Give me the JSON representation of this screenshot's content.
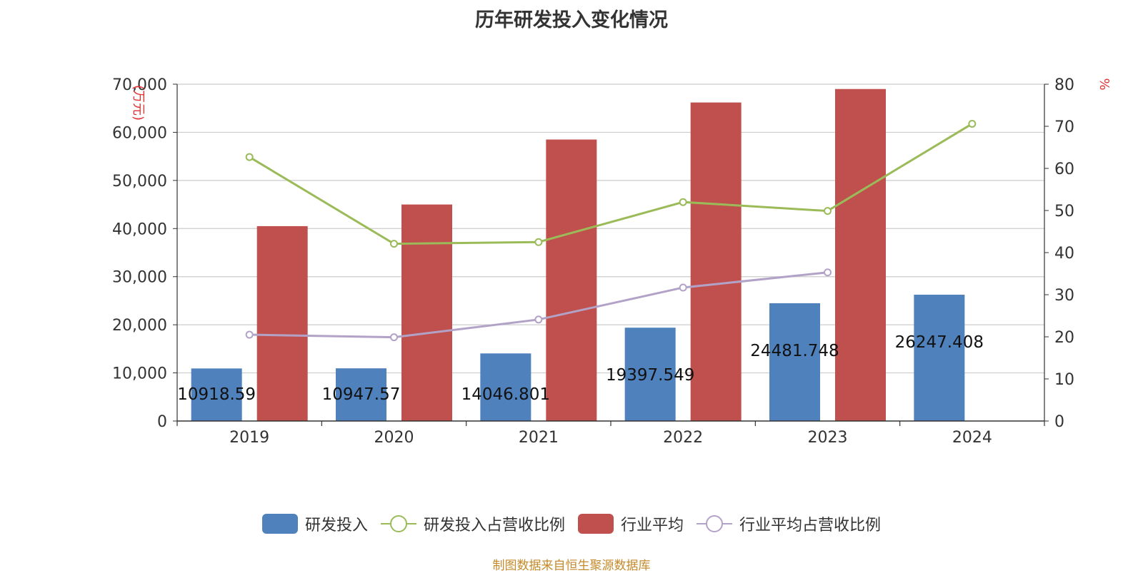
{
  "title": "历年研发投入变化情况",
  "footer": "制图数据来自恒生聚源数据库",
  "chart_data": {
    "type": "bar",
    "categories": [
      "2019",
      "2020",
      "2021",
      "2022",
      "2023",
      "2024"
    ],
    "y_left": {
      "label": "(万元)",
      "ylim": [
        0,
        70000
      ],
      "ticks": [
        "0",
        "10,000",
        "20,000",
        "30,000",
        "40,000",
        "50,000",
        "60,000",
        "70,000"
      ]
    },
    "y_right": {
      "label": "%",
      "ylim": [
        0,
        80
      ],
      "ticks": [
        "0",
        "10",
        "20",
        "30",
        "40",
        "50",
        "60",
        "70",
        "80"
      ]
    },
    "grid": true,
    "legend_position": "bottom",
    "series": [
      {
        "name": "研发投入",
        "kind": "bar",
        "axis": "left",
        "color": "#4f81bd",
        "values": [
          10918.59,
          10947.57,
          14046.801,
          19397.549,
          24481.748,
          26247.408
        ],
        "labels": [
          "10918.59",
          "10947.57",
          "14046.801",
          "19397.549",
          "24481.748",
          "26247.408"
        ]
      },
      {
        "name": "研发投入占营收比例",
        "kind": "line",
        "axis": "right",
        "color": "#9bbb59",
        "values": [
          62.7,
          42.1,
          42.5,
          52.0,
          49.9,
          70.6
        ]
      },
      {
        "name": "行业平均",
        "kind": "bar",
        "axis": "left",
        "color": "#c0504d",
        "values": [
          40500,
          45000,
          58500,
          66200,
          69000,
          null
        ]
      },
      {
        "name": "行业平均占营收比例",
        "kind": "line",
        "axis": "right",
        "color": "#b3a2c7",
        "values": [
          20.5,
          19.9,
          24.1,
          31.7,
          35.3,
          null
        ]
      }
    ]
  }
}
